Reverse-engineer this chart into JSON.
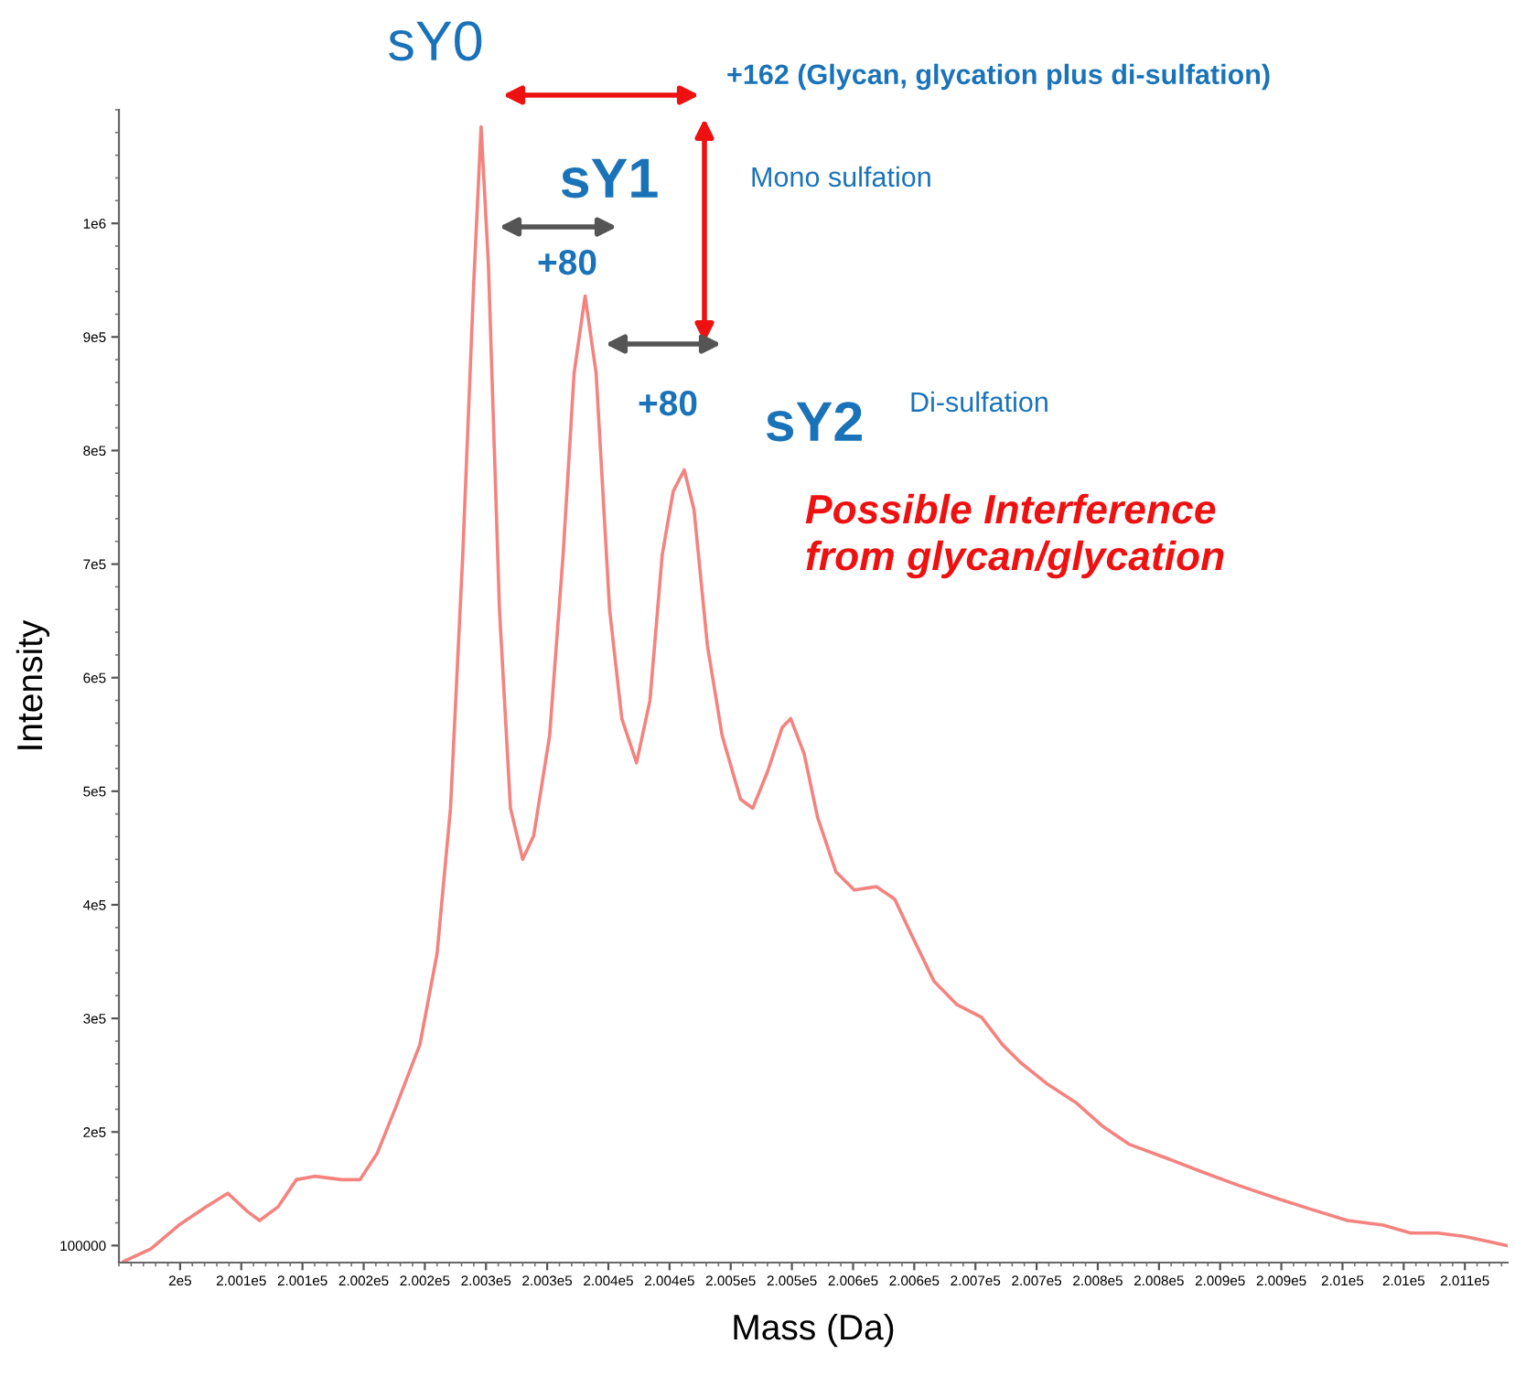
{
  "chart_data": {
    "type": "line",
    "xlabel": "Mass (Da)",
    "ylabel": "Intensity",
    "x": [
      199954,
      199976,
      199999,
      200021,
      200039,
      200055,
      200065,
      200080,
      200095,
      200110,
      200132,
      200147,
      200161,
      200176,
      200196,
      200210,
      200221,
      200231,
      200240,
      200246,
      200252,
      200261,
      200270,
      200280,
      200289,
      200302,
      200313,
      200322,
      200331,
      200340,
      200351,
      200361,
      200373,
      200384,
      200394,
      200403,
      200412,
      200420,
      200431,
      200443,
      200458,
      200468,
      200480,
      200492,
      200499,
      200510,
      200521,
      200536,
      200551,
      200569,
      200584,
      200598,
      200616,
      200635,
      200655,
      200672,
      200687,
      200709,
      200732,
      200754,
      200776,
      200806,
      200835,
      200865,
      200895,
      200924,
      200954,
      200983,
      201006,
      201028,
      201050,
      201072,
      201084
    ],
    "series": [
      {
        "color": "#f4837f",
        "values": [
          86000,
          97000,
          118000,
          134000,
          146000,
          130000,
          122000,
          134000,
          158000,
          161000,
          158000,
          158000,
          181000,
          221000,
          277000,
          357000,
          485000,
          708000,
          948000,
          1085000,
          963000,
          660000,
          485000,
          440000,
          461000,
          549000,
          708000,
          868000,
          936000,
          868000,
          660000,
          564000,
          525000,
          580000,
          708000,
          764000,
          783000,
          748000,
          628000,
          549000,
          493000,
          485000,
          517000,
          556000,
          564000,
          533000,
          477000,
          429000,
          413000,
          416000,
          405000,
          373000,
          333000,
          312000,
          301000,
          277000,
          261000,
          242000,
          226000,
          205000,
          189000,
          177000,
          165000,
          153000,
          142000,
          132000,
          122000,
          118000,
          111000,
          111000,
          108000,
          103000,
          100000
        ]
      }
    ],
    "xlim": [
      199950,
      201085
    ],
    "ylim": [
      85000,
      1100000
    ],
    "xticks": [
      {
        "value": 200000,
        "label": "2e5"
      },
      {
        "value": 200050,
        "label": "2.001e5"
      },
      {
        "value": 200100,
        "label": "2.001e5"
      },
      {
        "value": 200150,
        "label": "2.002e5"
      },
      {
        "value": 200200,
        "label": "2.002e5"
      },
      {
        "value": 200250,
        "label": "2.003e5"
      },
      {
        "value": 200300,
        "label": "2.003e5"
      },
      {
        "value": 200350,
        "label": "2.004e5"
      },
      {
        "value": 200400,
        "label": "2.004e5"
      },
      {
        "value": 200450,
        "label": "2.005e5"
      },
      {
        "value": 200500,
        "label": "2.005e5"
      },
      {
        "value": 200550,
        "label": "2.006e5"
      },
      {
        "value": 200600,
        "label": "2.006e5"
      },
      {
        "value": 200650,
        "label": "2.007e5"
      },
      {
        "value": 200700,
        "label": "2.007e5"
      },
      {
        "value": 200750,
        "label": "2.008e5"
      },
      {
        "value": 200800,
        "label": "2.008e5"
      },
      {
        "value": 200850,
        "label": "2.009e5"
      },
      {
        "value": 200900,
        "label": "2.009e5"
      },
      {
        "value": 200950,
        "label": "2.01e5"
      },
      {
        "value": 201000,
        "label": "2.01e5"
      },
      {
        "value": 201050,
        "label": "2.011e5"
      }
    ],
    "yticks": [
      100000,
      {
        "value": 200000,
        "label": "2e5"
      },
      {
        "value": 300000,
        "label": "3e5"
      },
      {
        "value": 400000,
        "label": "4e5"
      },
      {
        "value": 500000,
        "label": "5e5"
      },
      {
        "value": 600000,
        "label": "6e5"
      },
      {
        "value": 700000,
        "label": "7e5"
      },
      {
        "value": 800000,
        "label": "8e5"
      },
      {
        "value": 900000,
        "label": "9e5"
      },
      {
        "value": 1000000,
        "label": "1e6"
      }
    ],
    "grid": false,
    "legend": false,
    "marker": "none",
    "line_style": "solid",
    "annotations": [
      "sY0",
      "+162 (Glycan, glycation plus di-sulfation)",
      "sY1",
      "Mono sulfation",
      "+80",
      "+80",
      "sY2",
      "Di-sulfation",
      "Possible Interference\nfrom glycan/glycation"
    ]
  }
}
